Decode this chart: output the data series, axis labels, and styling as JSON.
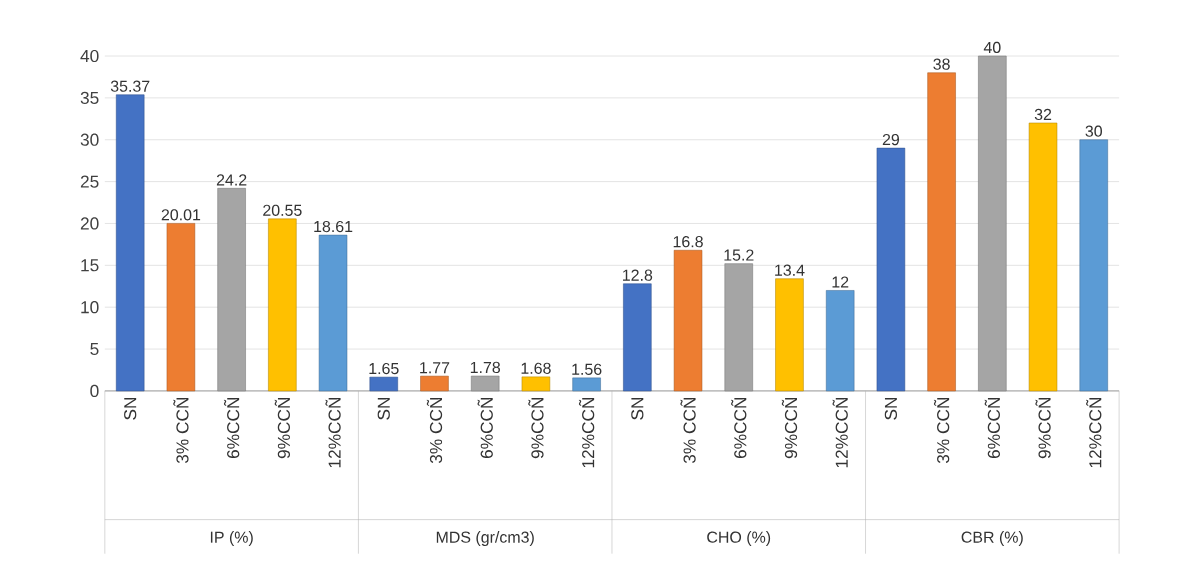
{
  "chart_data": {
    "type": "bar",
    "categories": [
      "SN",
      "3% CCÑ",
      "6%CCÑ",
      "9%CCÑ",
      "12%CCÑ",
      "SN",
      "3% CCÑ",
      "6%CCÑ",
      "9%CCÑ",
      "12%CCÑ",
      "SN",
      "3% CCÑ",
      "6%CCÑ",
      "9%CCÑ",
      "12%CCÑ",
      "SN",
      "3% CCÑ",
      "6%CCÑ",
      "9%CCÑ",
      "12%CCÑ"
    ],
    "values": [
      35.37,
      20.01,
      24.2,
      20.55,
      18.61,
      1.65,
      1.77,
      1.78,
      1.68,
      1.56,
      12.8,
      16.8,
      15.2,
      13.4,
      12,
      29,
      38,
      40,
      32,
      30
    ],
    "colors": [
      "#4472c4",
      "#ed7d31",
      "#a5a5a5",
      "#ffc000",
      "#5b9bd5",
      "#4472c4",
      "#ed7d31",
      "#a5a5a5",
      "#ffc000",
      "#5b9bd5",
      "#4472c4",
      "#ed7d31",
      "#a5a5a5",
      "#ffc000",
      "#5b9bd5",
      "#4472c4",
      "#ed7d31",
      "#a5a5a5",
      "#ffc000",
      "#5b9bd5"
    ],
    "annotations": [
      "IP (%)",
      "MDS (gr/cm3)",
      "CHO (%)",
      "CBR (%)"
    ],
    "ylim": [
      0,
      40
    ],
    "yticks": [
      0,
      5,
      10,
      15,
      20,
      25,
      30,
      35,
      40
    ],
    "grid": "y",
    "value_labels": [
      "35.37",
      "20.01",
      "24.2",
      "20.55",
      "18.61",
      "1.65",
      "1.77",
      "1.78",
      "1.68",
      "1.56",
      "12.8",
      "16.8",
      "15.2",
      "13.4",
      "12",
      "29",
      "38",
      "40",
      "32",
      "30"
    ]
  }
}
